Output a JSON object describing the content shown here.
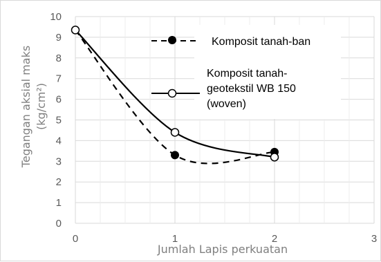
{
  "chart_data": {
    "type": "line",
    "title": "",
    "xlabel": "Jumlah Lapis perkuatan",
    "ylabel_lines": [
      "Tegangan aksial maks",
      "(kg/cm²)"
    ],
    "xlim": [
      0,
      3
    ],
    "ylim": [
      0,
      10
    ],
    "xticks": [
      "0",
      "1",
      "2",
      "3"
    ],
    "yticks": [
      "0",
      "1",
      "2",
      "3",
      "4",
      "5",
      "6",
      "7",
      "8",
      "9",
      "10"
    ],
    "grid": true,
    "legend_position": "top-right",
    "series": [
      {
        "name": "Komposit tanah-ban",
        "name_lines": [
          "Komposit tanah-ban"
        ],
        "line_style": "dashed",
        "marker": "filled-circle",
        "color": "#000000",
        "x": [
          0,
          1,
          2
        ],
        "y": [
          9.35,
          3.3,
          3.45
        ]
      },
      {
        "name": "Komposit tanah-geotekstil WB 150 (woven)",
        "name_lines": [
          "Komposit tanah-",
          "geotekstil WB 150",
          "(woven)"
        ],
        "line_style": "solid",
        "marker": "open-circle",
        "color": "#000000",
        "x": [
          0,
          1,
          2
        ],
        "y": [
          9.35,
          4.4,
          3.2
        ]
      }
    ]
  }
}
